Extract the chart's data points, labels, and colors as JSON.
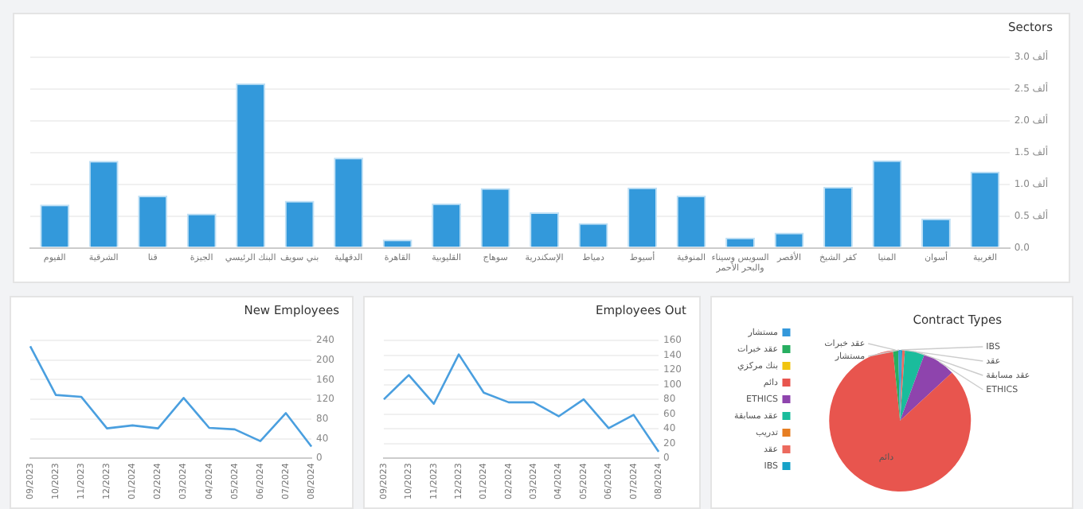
{
  "chart_data": [
    {
      "type": "bar",
      "title": "Sectors",
      "categories": [
        "الفيوم",
        "الشرقية",
        "قنا",
        "الجيزة",
        "البنك الرئيسي",
        "بني سويف",
        "الدقهلية",
        "القاهرة",
        "القليوبية",
        "سوهاج",
        "الإسكندرية",
        "دمياط",
        "أسيوط",
        "المنوفية",
        "السويس وسيناء والبحر الأحمر",
        "الأقصر",
        "كفر الشيخ",
        "المنيا",
        "أسوان",
        "الغربية"
      ],
      "values": [
        0.68,
        1.37,
        0.82,
        0.54,
        2.59,
        0.74,
        1.42,
        0.13,
        0.7,
        0.94,
        0.56,
        0.39,
        0.95,
        0.82,
        0.16,
        0.24,
        0.96,
        1.38,
        0.46,
        1.2
      ],
      "color": "#3399db",
      "ylim": [
        0,
        3
      ],
      "yticks": [
        {
          "value": 0,
          "label": "0.0"
        },
        {
          "value": 0.5,
          "label": "0.5 ألف"
        },
        {
          "value": 1,
          "label": "1.0 ألف"
        },
        {
          "value": 1.5,
          "label": "1.5 ألف"
        },
        {
          "value": 2,
          "label": "2.0 ألف"
        },
        {
          "value": 2.5,
          "label": "2.5 ألف"
        },
        {
          "value": 3,
          "label": "3.0 ألف"
        }
      ],
      "grid": "y"
    },
    {
      "type": "line",
      "title": "New Employees",
      "categories": [
        "09/2023",
        "10/2023",
        "11/2023",
        "12/2023",
        "01/2024",
        "02/2024",
        "03/2024",
        "04/2024",
        "05/2024",
        "06/2024",
        "07/2024",
        "08/2024"
      ],
      "values": [
        228,
        129,
        125,
        61,
        67,
        61,
        123,
        62,
        59,
        35,
        92,
        24
      ],
      "color": "#4a9fdf",
      "ylim": [
        0,
        240
      ],
      "yticks": [
        0,
        40,
        80,
        120,
        160,
        200,
        240
      ],
      "grid": "y",
      "marker": "none"
    },
    {
      "type": "line",
      "title": "Employees Out",
      "categories": [
        "09/2023",
        "10/2023",
        "11/2023",
        "12/2023",
        "01/2024",
        "02/2024",
        "03/2024",
        "04/2024",
        "05/2024",
        "06/2024",
        "07/2024",
        "08/2024"
      ],
      "values": [
        80,
        113,
        74,
        141,
        89,
        76,
        76,
        57,
        80,
        41,
        59,
        9
      ],
      "color": "#4a9fdf",
      "ylim": [
        0,
        160
      ],
      "yticks": [
        0,
        20,
        40,
        60,
        80,
        100,
        120,
        140,
        160
      ],
      "grid": "y",
      "marker": "none"
    },
    {
      "type": "pie",
      "title": "Contract Types",
      "categories": [
        "IBS",
        "عقد",
        "تدريب",
        "عقد مسابقة",
        "ETHICS",
        "دائم",
        "بنك مركزي",
        "عقد خبرات",
        "مستشار"
      ],
      "values": [
        0.5,
        0.6,
        0,
        4.5,
        7.5,
        85.3,
        0,
        1.2,
        0.4
      ],
      "colors": [
        "#17a2c8",
        "#ec6a5e",
        "#e67e22",
        "#1abc9c",
        "#8e44ad",
        "#e8554e",
        "#f1c40f",
        "#27ae60",
        "#3498db"
      ],
      "legend": "left"
    }
  ]
}
